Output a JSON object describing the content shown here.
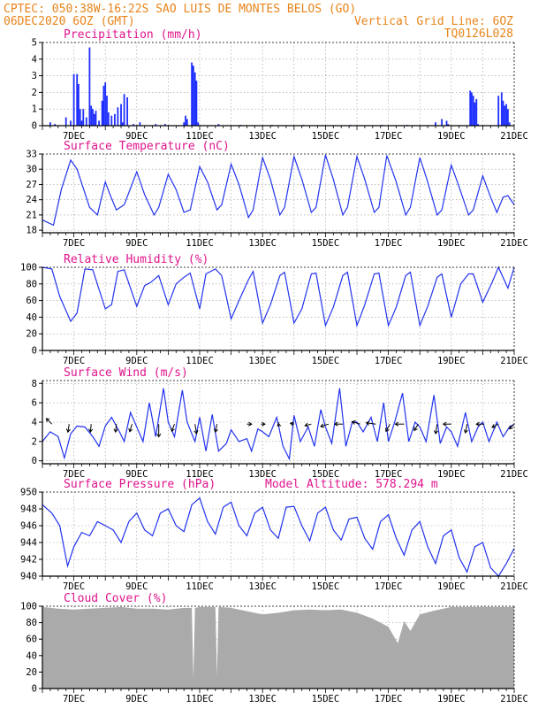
{
  "header": {
    "line1_left": "CPTEC:  050:38W-16:22S  SAO LUIS DE MONTES BELOS (GO)",
    "line2_left": "06DEC2020 6OZ (GMT)",
    "line2_right": "Vertical Grid Line: 6OZ",
    "line3_right": "TQ0126L028"
  },
  "chart_data": [
    {
      "type": "bar",
      "title": "Precipitation (mm/h)",
      "ylim": [
        0,
        5
      ],
      "yticks": [
        "0",
        "1",
        "2",
        "3",
        "4",
        "5"
      ],
      "xticks": [
        "7DEC",
        "9DEC",
        "11DEC",
        "13DEC",
        "15DEC",
        "17DEC",
        "19DEC",
        "21DEC"
      ],
      "color": "#1f2fff",
      "x": [
        6.25,
        6.4,
        6.75,
        6.9,
        7.0,
        7.1,
        7.15,
        7.2,
        7.25,
        7.3,
        7.4,
        7.5,
        7.55,
        7.6,
        7.65,
        7.7,
        7.8,
        7.9,
        7.95,
        8.0,
        8.05,
        8.1,
        8.2,
        8.3,
        8.4,
        8.5,
        8.55,
        8.6,
        8.7,
        8.9,
        9.1,
        9.6,
        9.9,
        10.5,
        10.55,
        10.6,
        10.75,
        10.8,
        10.85,
        10.9,
        10.95,
        11.6,
        12.3,
        13.3,
        14.3,
        15.8,
        16.8,
        17.6,
        18.5,
        18.7,
        18.85,
        18.9,
        19.6,
        19.65,
        19.7,
        19.75,
        19.8,
        19.85,
        20.5,
        20.6,
        20.65,
        20.7,
        20.75,
        20.8,
        20.85
      ],
      "values": [
        0.2,
        0.1,
        0.5,
        0.3,
        3.1,
        3.1,
        2.5,
        1.0,
        0.3,
        1.0,
        0.5,
        4.7,
        1.2,
        1.0,
        0.7,
        0.9,
        0.3,
        1.5,
        2.4,
        2.6,
        1.8,
        0.8,
        0.6,
        0.7,
        1.1,
        1.3,
        0.2,
        1.9,
        1.7,
        0.1,
        0.2,
        0.1,
        0.1,
        0.2,
        0.6,
        0.4,
        3.8,
        3.6,
        3.2,
        2.7,
        0.2,
        0.1,
        0.05,
        0.05,
        0.05,
        0.05,
        0.05,
        0.05,
        0.2,
        0.4,
        0.3,
        0.1,
        2.1,
        2.0,
        1.8,
        1.4,
        1.6,
        0.1,
        1.8,
        2.0,
        1.5,
        1.2,
        1.3,
        1.0,
        0.2
      ]
    },
    {
      "type": "line",
      "title": "Surface Temperature (nC)",
      "ylim": [
        17.5,
        33
      ],
      "yticks": [
        "18",
        "21",
        "24",
        "27",
        "30",
        "33"
      ],
      "xticks": [
        "7DEC",
        "9DEC",
        "11DEC",
        "13DEC",
        "15DEC",
        "17DEC",
        "19DEC",
        "21DEC"
      ],
      "color": "#2233ee",
      "x": [
        6.0,
        6.35,
        6.6,
        6.9,
        7.1,
        7.5,
        7.75,
        8.0,
        8.15,
        8.35,
        8.6,
        9.0,
        9.25,
        9.55,
        9.7,
        10.0,
        10.25,
        10.5,
        10.7,
        11.0,
        11.25,
        11.55,
        11.7,
        12.0,
        12.25,
        12.55,
        12.7,
        13.0,
        13.25,
        13.55,
        13.7,
        14.0,
        14.25,
        14.55,
        14.7,
        15.0,
        15.25,
        15.55,
        15.7,
        16.0,
        16.25,
        16.55,
        16.7,
        16.95,
        17.25,
        17.55,
        17.7,
        18.0,
        18.25,
        18.55,
        18.7,
        19.0,
        19.25,
        19.55,
        19.7,
        20.0,
        20.25,
        20.45,
        20.65,
        20.8,
        21.0
      ],
      "values": [
        20.0,
        19.0,
        26.0,
        31.8,
        30.0,
        22.5,
        21.0,
        27.5,
        25.0,
        22.0,
        23.0,
        29.5,
        25.0,
        21.0,
        22.5,
        29.0,
        26.0,
        21.5,
        22.0,
        30.5,
        27.5,
        22.0,
        23.0,
        31.0,
        27.0,
        20.5,
        22.0,
        32.3,
        28.0,
        21.0,
        22.5,
        32.5,
        28.0,
        21.5,
        22.5,
        32.8,
        28.0,
        21.0,
        22.5,
        32.5,
        28.0,
        21.5,
        22.5,
        32.7,
        27.5,
        21.0,
        22.5,
        32.3,
        27.5,
        21.0,
        22.0,
        30.8,
        26.5,
        21.0,
        22.0,
        28.7,
        24.5,
        21.5,
        24.5,
        24.8,
        23.0
      ]
    },
    {
      "type": "line",
      "title": "Relative Humidity (%)",
      "ylim": [
        0,
        100
      ],
      "yticks": [
        "0",
        "20",
        "40",
        "60",
        "80",
        "100"
      ],
      "xticks": [
        "7DEC",
        "9DEC",
        "11DEC",
        "13DEC",
        "15DEC",
        "17DEC",
        "19DEC",
        "21DEC"
      ],
      "color": "#2233ee",
      "x": [
        6.0,
        6.3,
        6.55,
        6.9,
        7.1,
        7.35,
        7.6,
        8.0,
        8.2,
        8.4,
        8.6,
        9.0,
        9.25,
        9.45,
        9.7,
        10.0,
        10.25,
        10.5,
        10.7,
        11.0,
        11.2,
        11.5,
        11.7,
        12.0,
        12.25,
        12.55,
        12.7,
        13.0,
        13.25,
        13.55,
        13.7,
        14.0,
        14.25,
        14.55,
        14.7,
        15.0,
        15.25,
        15.55,
        15.7,
        16.0,
        16.25,
        16.55,
        16.7,
        17.0,
        17.25,
        17.55,
        17.7,
        18.0,
        18.25,
        18.55,
        18.7,
        19.0,
        19.3,
        19.55,
        19.7,
        20.0,
        20.3,
        20.5,
        20.8,
        21.0
      ],
      "values": [
        100,
        98,
        65,
        35,
        45,
        98,
        97,
        50,
        55,
        95,
        97,
        53,
        78,
        82,
        90,
        55,
        80,
        88,
        93,
        50,
        92,
        98,
        90,
        38,
        60,
        85,
        95,
        33,
        55,
        90,
        94,
        33,
        50,
        92,
        93,
        30,
        52,
        90,
        94,
        30,
        55,
        92,
        93,
        30,
        52,
        90,
        94,
        30,
        53,
        88,
        92,
        40,
        80,
        92,
        92,
        58,
        82,
        100,
        75,
        100
      ]
    },
    {
      "type": "line",
      "title": "Surface Wind (m/s)",
      "ylim": [
        -0.3,
        8.3
      ],
      "yticks": [
        "0",
        "2",
        "4",
        "6",
        "8"
      ],
      "xticks": [
        "7DEC",
        "9DEC",
        "11DEC",
        "13DEC",
        "15DEC",
        "17DEC",
        "19DEC",
        "21DEC"
      ],
      "color": "#2233ee",
      "x": [
        6.0,
        6.25,
        6.5,
        6.7,
        6.9,
        7.1,
        7.35,
        7.6,
        7.8,
        8.0,
        8.2,
        8.45,
        8.6,
        8.8,
        9.0,
        9.2,
        9.4,
        9.6,
        9.85,
        10.0,
        10.2,
        10.45,
        10.6,
        10.85,
        11.0,
        11.2,
        11.4,
        11.6,
        11.85,
        12.0,
        12.25,
        12.5,
        12.65,
        12.85,
        13.0,
        13.2,
        13.45,
        13.65,
        13.85,
        14.0,
        14.2,
        14.45,
        14.65,
        14.85,
        15.0,
        15.2,
        15.45,
        15.65,
        15.85,
        16.0,
        16.2,
        16.45,
        16.65,
        16.85,
        17.0,
        17.2,
        17.45,
        17.65,
        17.85,
        18.0,
        18.2,
        18.45,
        18.65,
        18.85,
        19.0,
        19.2,
        19.45,
        19.65,
        19.85,
        20.0,
        20.2,
        20.45,
        20.65,
        20.85,
        21.0
      ],
      "values": [
        2.0,
        3.0,
        2.5,
        0.3,
        2.8,
        3.6,
        3.5,
        2.5,
        1.5,
        3.6,
        4.5,
        3.0,
        2.0,
        5.0,
        3.5,
        2.0,
        6.0,
        2.5,
        7.5,
        4.0,
        2.5,
        7.3,
        4.0,
        2.0,
        4.5,
        1.0,
        4.8,
        1.0,
        1.8,
        3.2,
        2.0,
        2.3,
        1.0,
        3.3,
        3.0,
        2.5,
        4.5,
        1.5,
        0.2,
        4.7,
        2.0,
        3.5,
        1.5,
        5.3,
        3.5,
        1.8,
        7.5,
        1.5,
        4.0,
        4.0,
        3.0,
        4.5,
        2.0,
        6.0,
        2.0,
        4.0,
        7.0,
        2.0,
        4.0,
        3.5,
        2.0,
        6.8,
        1.8,
        3.5,
        3.0,
        1.5,
        5.0,
        2.0,
        3.5,
        4.0,
        2.0,
        4.0,
        2.5,
        3.5,
        3.8
      ],
      "vectors": [
        {
          "x": 6.3,
          "u": -0.7,
          "v": 0.7
        },
        {
          "x": 6.85,
          "u": -0.15,
          "v": -1
        },
        {
          "x": 7.55,
          "u": -0.1,
          "v": -1
        },
        {
          "x": 8.35,
          "u": -0.1,
          "v": -1
        },
        {
          "x": 8.85,
          "u": -0.3,
          "v": -0.95
        },
        {
          "x": 9.7,
          "u": 0,
          "v": -1.6
        },
        {
          "x": 10.2,
          "u": -0.35,
          "v": -0.9
        },
        {
          "x": 10.85,
          "u": 0.2,
          "v": -1.2
        },
        {
          "x": 11.55,
          "u": -0.2,
          "v": -1
        },
        {
          "x": 12.5,
          "u": 0.6,
          "v": 0
        },
        {
          "x": 12.95,
          "u": 0.5,
          "v": 0
        },
        {
          "x": 13.55,
          "u": -0.3,
          "v": -0.2
        },
        {
          "x": 14.0,
          "u": -0.45,
          "v": 0.1
        },
        {
          "x": 14.55,
          "u": -0.8,
          "v": -0.2
        },
        {
          "x": 15.1,
          "u": -1,
          "v": -0.3
        },
        {
          "x": 15.55,
          "u": -1,
          "v": 0
        },
        {
          "x": 16.1,
          "u": -1,
          "v": 0.3
        },
        {
          "x": 16.6,
          "u": -1.2,
          "v": 0.15
        },
        {
          "x": 17.05,
          "u": -0.5,
          "v": -0.9
        },
        {
          "x": 17.5,
          "u": -1.1,
          "v": 0
        },
        {
          "x": 17.95,
          "u": -0.5,
          "v": -0.8
        },
        {
          "x": 18.55,
          "u": -0.2,
          "v": -1.2
        },
        {
          "x": 19.0,
          "u": -1,
          "v": 0
        },
        {
          "x": 19.5,
          "u": -0.2,
          "v": -1.1
        },
        {
          "x": 20.05,
          "u": -1,
          "v": 0
        },
        {
          "x": 20.5,
          "u": -0.8,
          "v": -0.4
        },
        {
          "x": 21.0,
          "u": -0.6,
          "v": -0.6
        }
      ]
    },
    {
      "type": "line",
      "title": "Surface Pressure (hPa)",
      "annotation": "Model Altitude: 578.294 m",
      "ylim": [
        940,
        950
      ],
      "yticks": [
        "940",
        "942",
        "944",
        "946",
        "948",
        "950"
      ],
      "xticks": [
        "7DEC",
        "9DEC",
        "11DEC",
        "13DEC",
        "15DEC",
        "17DEC",
        "19DEC",
        "21DEC"
      ],
      "color": "#2233ee",
      "x": [
        6.0,
        6.3,
        6.55,
        6.8,
        7.0,
        7.25,
        7.5,
        7.75,
        8.0,
        8.25,
        8.5,
        8.75,
        9.0,
        9.25,
        9.5,
        9.75,
        10.0,
        10.25,
        10.5,
        10.75,
        11.0,
        11.25,
        11.5,
        11.75,
        12.0,
        12.25,
        12.5,
        12.75,
        13.0,
        13.25,
        13.5,
        13.75,
        14.0,
        14.25,
        14.5,
        14.75,
        15.0,
        15.25,
        15.5,
        15.75,
        16.0,
        16.25,
        16.5,
        16.75,
        17.0,
        17.25,
        17.5,
        17.75,
        18.0,
        18.25,
        18.5,
        18.75,
        19.0,
        19.25,
        19.5,
        19.75,
        20.0,
        20.25,
        20.5,
        20.75,
        21.0
      ],
      "values": [
        948.5,
        947.5,
        946.0,
        941.2,
        943.5,
        945.2,
        944.8,
        946.5,
        946.0,
        945.5,
        944.0,
        946.5,
        947.5,
        945.5,
        944.8,
        947.5,
        948.0,
        946.0,
        945.3,
        948.5,
        949.3,
        946.5,
        945.0,
        948.2,
        948.8,
        946.0,
        944.8,
        947.5,
        948.2,
        945.5,
        944.5,
        948.2,
        948.3,
        946.0,
        944.2,
        947.5,
        948.2,
        945.5,
        944.3,
        946.8,
        947.0,
        944.5,
        943.2,
        946.5,
        947.3,
        944.5,
        942.5,
        945.5,
        946.5,
        943.5,
        941.5,
        944.8,
        945.5,
        942.2,
        940.5,
        943.5,
        944.0,
        941.0,
        940.0,
        941.5,
        943.3
      ]
    },
    {
      "type": "area",
      "title": "Cloud Cover (%)",
      "ylim": [
        0,
        100
      ],
      "yticks": [
        "0",
        "20",
        "40",
        "60",
        "80",
        "100"
      ],
      "xticks": [
        "7DEC",
        "9DEC",
        "11DEC",
        "13DEC",
        "15DEC",
        "17DEC",
        "19DEC",
        "21DEC"
      ],
      "color": "#aaaaaa",
      "x": [
        6.0,
        6.5,
        7.0,
        7.5,
        8.0,
        8.5,
        9.0,
        9.5,
        10.0,
        10.5,
        10.75,
        10.8,
        10.85,
        11.0,
        11.5,
        11.55,
        11.6,
        11.65,
        12.0,
        12.5,
        13.0,
        13.5,
        14.0,
        14.5,
        15.0,
        15.5,
        16.0,
        16.5,
        17.0,
        17.3,
        17.5,
        17.7,
        18.0,
        18.5,
        19.0,
        19.5,
        20.0,
        20.5,
        21.0
      ],
      "values": [
        99,
        97,
        96,
        97,
        98,
        99,
        97,
        97,
        96,
        98,
        98,
        12,
        98,
        99,
        99,
        15,
        99,
        99,
        98,
        94,
        90,
        92,
        95,
        96,
        95,
        96,
        92,
        85,
        75,
        55,
        82,
        70,
        90,
        95,
        99,
        99,
        99,
        99,
        99
      ]
    }
  ]
}
